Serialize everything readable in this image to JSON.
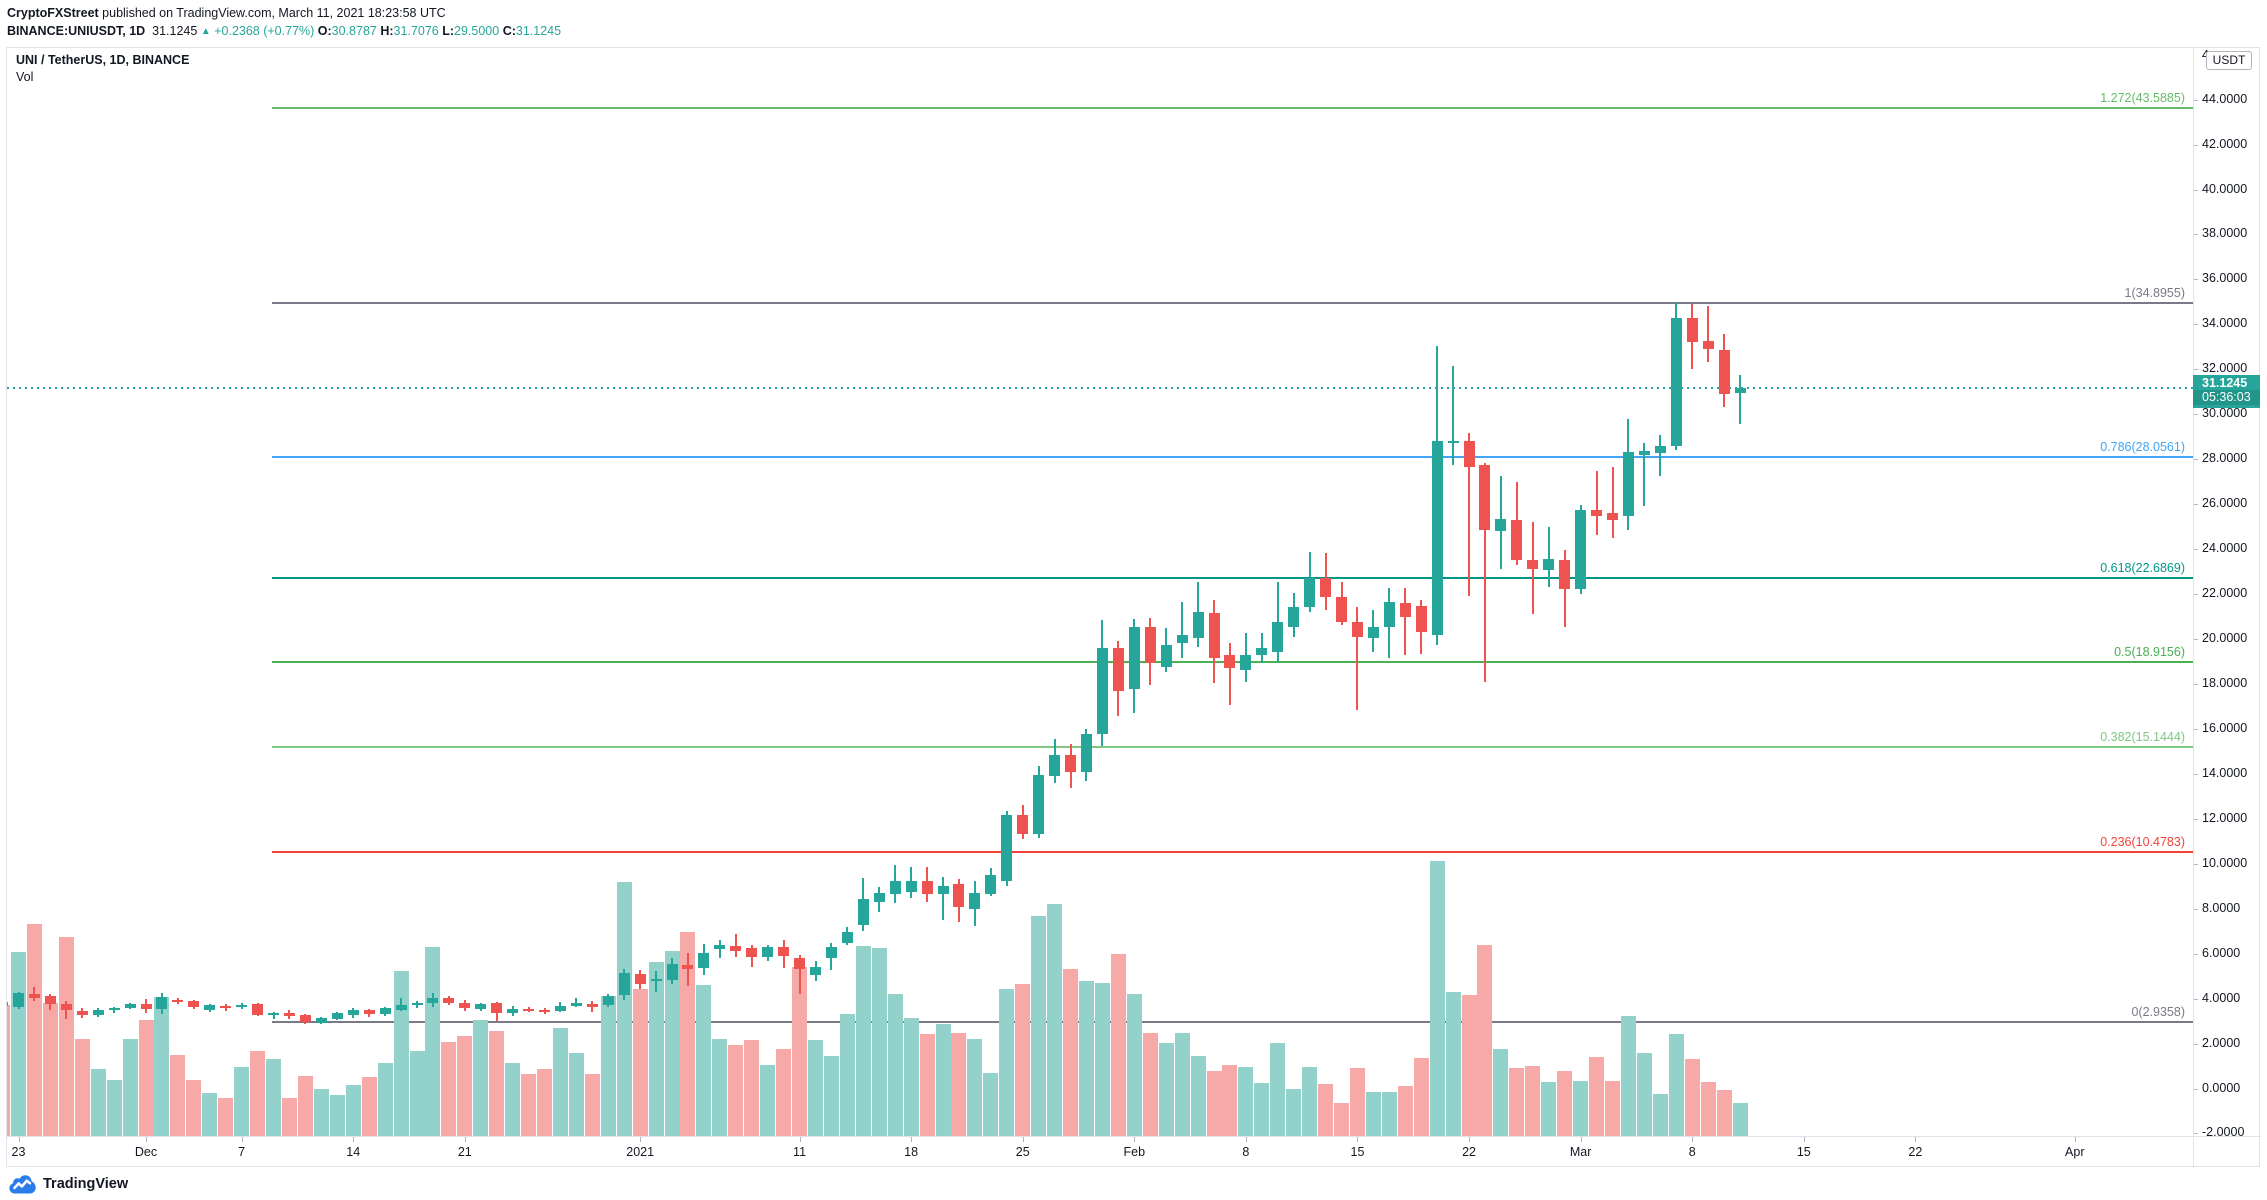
{
  "header": {
    "publisher": "CryptoFXStreet",
    "published_suffix": " published on TradingView.com, March 11, 2021 18:23:58 UTC",
    "symbol_interval": "BINANCE:UNIUSDT, 1D",
    "last_price": "31.1245",
    "up_arrow": "▲",
    "change": "+0.2368 (+0.77%)",
    "ohlc": [
      {
        "k": "O:",
        "v": "30.8787"
      },
      {
        "k": "H:",
        "v": "31.7076"
      },
      {
        "k": "L:",
        "v": "29.5000"
      },
      {
        "k": "C:",
        "v": "31.1245"
      }
    ]
  },
  "legend": {
    "title": "UNI / TetherUS, 1D, BINANCE",
    "indicator": "Vol"
  },
  "footer": {
    "logo_text": "TradingView"
  },
  "price_axis": {
    "unit": "USDT",
    "clipped_top_label": "4",
    "labels": [
      "44.0000",
      "42.0000",
      "40.0000",
      "38.0000",
      "36.0000",
      "34.0000",
      "32.0000",
      "30.0000",
      "28.0000",
      "26.0000",
      "24.0000",
      "22.0000",
      "20.0000",
      "18.0000",
      "16.0000",
      "14.0000",
      "12.0000",
      "10.0000",
      "8.0000",
      "6.0000",
      "4.0000",
      "2.0000",
      "0.0000",
      "-2.0000"
    ],
    "values": [
      44,
      42,
      40,
      38,
      36,
      34,
      32,
      30,
      28,
      26,
      24,
      22,
      20,
      18,
      16,
      14,
      12,
      10,
      8,
      6,
      4,
      2,
      0,
      -2
    ]
  },
  "time_axis": [
    {
      "label": "23",
      "day": 0
    },
    {
      "label": "Dec",
      "day": 8
    },
    {
      "label": "7",
      "day": 14
    },
    {
      "label": "14",
      "day": 21
    },
    {
      "label": "21",
      "day": 28
    },
    {
      "label": "2021",
      "day": 39
    },
    {
      "label": "11",
      "day": 49
    },
    {
      "label": "18",
      "day": 56
    },
    {
      "label": "25",
      "day": 63
    },
    {
      "label": "Feb",
      "day": 70
    },
    {
      "label": "8",
      "day": 77
    },
    {
      "label": "15",
      "day": 84
    },
    {
      "label": "22",
      "day": 91
    },
    {
      "label": "Mar",
      "day": 98
    },
    {
      "label": "8",
      "day": 105
    },
    {
      "label": "15",
      "day": 112
    },
    {
      "label": "22",
      "day": 119
    },
    {
      "label": "Apr",
      "day": 129
    }
  ],
  "colors": {
    "up": "#26a69a",
    "down": "#ef5350",
    "vol_up": "#92d2cb",
    "vol_down": "#f7a9a7",
    "accent_teal": "#26a69a",
    "text_dark": "#131722",
    "border": "#e0e3eb"
  },
  "chart_data": {
    "type": "candlestick+volume",
    "title": "UNI / TetherUS, 1D, BINANCE",
    "symbol": "BINANCE:UNIUSDT",
    "timeframe": "1D",
    "ylim": [
      -2.4,
      46.3
    ],
    "grid": false,
    "last_price": {
      "value": 31.1245,
      "label": "31.1245",
      "countdown": "05:36:03"
    },
    "fib_levels": [
      {
        "label": "1.272(43.5885)",
        "ratio": 1.272,
        "price": 43.5885,
        "color": "#66bb6a"
      },
      {
        "label": "1(34.8955)",
        "ratio": 1.0,
        "price": 34.8955,
        "color": "#787b86"
      },
      {
        "label": "0.786(28.0561)",
        "ratio": 0.786,
        "price": 28.0561,
        "color": "#42a5f5"
      },
      {
        "label": "0.618(22.6869)",
        "ratio": 0.618,
        "price": 22.6869,
        "color": "#009688"
      },
      {
        "label": "0.5(18.9156)",
        "ratio": 0.5,
        "price": 18.9156,
        "color": "#4caf50"
      },
      {
        "label": "0.382(15.1444)",
        "ratio": 0.382,
        "price": 15.1444,
        "color": "#81c784"
      },
      {
        "label": "0.236(10.4783)",
        "ratio": 0.236,
        "price": 10.4783,
        "color": "#f44336"
      },
      {
        "label": "0(2.9358)",
        "ratio": 0.0,
        "price": 2.9358,
        "color": "#787b86"
      }
    ],
    "volume_unit": "relative (1.0 = tallest bar)",
    "candles": [
      {
        "d": "Nov 22",
        "o": 3.8,
        "h": 3.82,
        "l": 3.62,
        "c": 3.63,
        "v": 0.477
      },
      {
        "d": "Nov 23",
        "o": 3.59,
        "h": 4.27,
        "l": 3.49,
        "c": 4.22,
        "v": 0.67
      },
      {
        "d": "Nov 24",
        "o": 4.18,
        "h": 4.47,
        "l": 3.85,
        "c": 3.98,
        "v": 0.772
      },
      {
        "d": "Nov 25",
        "o": 4.05,
        "h": 4.16,
        "l": 3.45,
        "c": 3.7,
        "v": 0.483
      },
      {
        "d": "Nov 26",
        "o": 3.73,
        "h": 3.85,
        "l": 3.05,
        "c": 3.43,
        "v": 0.725
      },
      {
        "d": "Nov 27",
        "o": 3.4,
        "h": 3.53,
        "l": 3.1,
        "c": 3.23,
        "v": 0.355
      },
      {
        "d": "Nov 28",
        "o": 3.24,
        "h": 3.52,
        "l": 3.15,
        "c": 3.45,
        "v": 0.244
      },
      {
        "d": "Nov 29",
        "o": 3.43,
        "h": 3.56,
        "l": 3.33,
        "c": 3.52,
        "v": 0.204
      },
      {
        "d": "Nov 30",
        "o": 3.54,
        "h": 3.78,
        "l": 3.5,
        "c": 3.73,
        "v": 0.352
      },
      {
        "d": "Dec 1",
        "o": 3.73,
        "h": 3.95,
        "l": 3.33,
        "c": 3.51,
        "v": 0.423
      },
      {
        "d": "Dec 2",
        "o": 3.49,
        "h": 4.21,
        "l": 3.26,
        "c": 4.04,
        "v": 0.506
      },
      {
        "d": "Dec 3",
        "o": 3.91,
        "h": 3.98,
        "l": 3.7,
        "c": 3.82,
        "v": 0.295
      },
      {
        "d": "Dec 4",
        "o": 3.86,
        "h": 3.9,
        "l": 3.5,
        "c": 3.57,
        "v": 0.204
      },
      {
        "d": "Dec 5",
        "o": 3.45,
        "h": 3.72,
        "l": 3.35,
        "c": 3.68,
        "v": 0.155
      },
      {
        "d": "Dec 6",
        "o": 3.63,
        "h": 3.72,
        "l": 3.42,
        "c": 3.54,
        "v": 0.14
      },
      {
        "d": "Dec 7",
        "o": 3.57,
        "h": 3.75,
        "l": 3.51,
        "c": 3.69,
        "v": 0.251
      },
      {
        "d": "Dec 8",
        "o": 3.72,
        "h": 3.76,
        "l": 3.2,
        "c": 3.24,
        "v": 0.308
      },
      {
        "d": "Dec 9",
        "o": 3.24,
        "h": 3.36,
        "l": 3.06,
        "c": 3.3,
        "v": 0.28
      },
      {
        "d": "Dec 10",
        "o": 3.3,
        "h": 3.47,
        "l": 3.03,
        "c": 3.17,
        "v": 0.137
      },
      {
        "d": "Dec 11",
        "o": 3.21,
        "h": 3.27,
        "l": 2.83,
        "c": 2.93,
        "v": 0.219
      },
      {
        "d": "Dec 12",
        "o": 2.89,
        "h": 3.13,
        "l": 2.84,
        "c": 3.09,
        "v": 0.171
      },
      {
        "d": "Dec 13",
        "o": 3.04,
        "h": 3.38,
        "l": 2.99,
        "c": 3.33,
        "v": 0.148
      },
      {
        "d": "Dec 14",
        "o": 3.23,
        "h": 3.54,
        "l": 3.09,
        "c": 3.44,
        "v": 0.186
      },
      {
        "d": "Dec 15",
        "o": 3.43,
        "h": 3.51,
        "l": 3.14,
        "c": 3.26,
        "v": 0.215
      },
      {
        "d": "Dec 16",
        "o": 3.28,
        "h": 3.56,
        "l": 3.18,
        "c": 3.53,
        "v": 0.266
      },
      {
        "d": "Dec 17",
        "o": 3.47,
        "h": 3.97,
        "l": 3.42,
        "c": 3.67,
        "v": 0.601
      },
      {
        "d": "Dec 18",
        "o": 3.67,
        "h": 3.84,
        "l": 3.55,
        "c": 3.74,
        "v": 0.31
      },
      {
        "d": "Dec 19",
        "o": 3.77,
        "h": 4.2,
        "l": 3.57,
        "c": 3.97,
        "v": 0.689
      },
      {
        "d": "Dec 20",
        "o": 3.97,
        "h": 4.08,
        "l": 3.66,
        "c": 3.77,
        "v": 0.341
      },
      {
        "d": "Dec 21",
        "o": 3.77,
        "h": 3.9,
        "l": 3.4,
        "c": 3.54,
        "v": 0.364
      },
      {
        "d": "Dec 22",
        "o": 3.5,
        "h": 3.78,
        "l": 3.42,
        "c": 3.7,
        "v": 0.423
      },
      {
        "d": "Dec 23",
        "o": 3.74,
        "h": 3.8,
        "l": 2.97,
        "c": 3.3,
        "v": 0.383
      },
      {
        "d": "Dec 24",
        "o": 3.3,
        "h": 3.63,
        "l": 3.17,
        "c": 3.5,
        "v": 0.266
      },
      {
        "d": "Dec 25",
        "o": 3.5,
        "h": 3.58,
        "l": 3.35,
        "c": 3.43,
        "v": 0.226
      },
      {
        "d": "Dec 26",
        "o": 3.47,
        "h": 3.55,
        "l": 3.28,
        "c": 3.36,
        "v": 0.244
      },
      {
        "d": "Dec 27",
        "o": 3.4,
        "h": 3.8,
        "l": 3.35,
        "c": 3.63,
        "v": 0.393
      },
      {
        "d": "Dec 28",
        "o": 3.63,
        "h": 3.97,
        "l": 3.56,
        "c": 3.74,
        "v": 0.304
      },
      {
        "d": "Dec 29",
        "o": 3.7,
        "h": 3.84,
        "l": 3.37,
        "c": 3.57,
        "v": 0.226
      },
      {
        "d": "Dec 30",
        "o": 3.67,
        "h": 4.17,
        "l": 3.6,
        "c": 4.07,
        "v": 0.51
      },
      {
        "d": "Dec 31",
        "o": 4.1,
        "h": 5.27,
        "l": 3.9,
        "c": 5.1,
        "v": 0.927
      },
      {
        "d": "Jan 1",
        "o": 5.07,
        "h": 5.24,
        "l": 4.37,
        "c": 4.6,
        "v": 0.536
      },
      {
        "d": "Jan 2",
        "o": 4.74,
        "h": 5.17,
        "l": 4.27,
        "c": 4.84,
        "v": 0.634
      },
      {
        "d": "Jan 3",
        "o": 4.79,
        "h": 5.74,
        "l": 4.6,
        "c": 5.5,
        "v": 0.674
      },
      {
        "d": "Jan 4",
        "o": 5.47,
        "h": 5.97,
        "l": 4.5,
        "c": 5.27,
        "v": 0.743
      },
      {
        "d": "Jan 5",
        "o": 5.3,
        "h": 6.37,
        "l": 5.01,
        "c": 5.97,
        "v": 0.55
      },
      {
        "d": "Jan 6",
        "o": 6.14,
        "h": 6.57,
        "l": 5.77,
        "c": 6.34,
        "v": 0.353
      },
      {
        "d": "Jan 7",
        "o": 6.31,
        "h": 6.81,
        "l": 5.81,
        "c": 6.07,
        "v": 0.332
      },
      {
        "d": "Jan 8",
        "o": 6.21,
        "h": 6.35,
        "l": 5.37,
        "c": 5.81,
        "v": 0.35
      },
      {
        "d": "Jan 9",
        "o": 5.81,
        "h": 6.34,
        "l": 5.61,
        "c": 6.24,
        "v": 0.259
      },
      {
        "d": "Jan 10",
        "o": 6.24,
        "h": 6.57,
        "l": 5.3,
        "c": 5.84,
        "v": 0.317
      },
      {
        "d": "Jan 11",
        "o": 5.77,
        "h": 5.9,
        "l": 4.17,
        "c": 5.27,
        "v": 0.616
      },
      {
        "d": "Jan 12",
        "o": 5.01,
        "h": 5.61,
        "l": 4.74,
        "c": 5.37,
        "v": 0.35
      },
      {
        "d": "Jan 13",
        "o": 5.74,
        "h": 6.44,
        "l": 5.21,
        "c": 6.24,
        "v": 0.291
      },
      {
        "d": "Jan 14",
        "o": 6.41,
        "h": 7.14,
        "l": 6.35,
        "c": 6.94,
        "v": 0.444
      },
      {
        "d": "Jan 15",
        "o": 7.24,
        "h": 9.34,
        "l": 6.97,
        "c": 8.37,
        "v": 0.692
      },
      {
        "d": "Jan 16",
        "o": 8.27,
        "h": 8.94,
        "l": 7.81,
        "c": 8.64,
        "v": 0.685
      },
      {
        "d": "Jan 17",
        "o": 8.61,
        "h": 9.88,
        "l": 8.21,
        "c": 9.17,
        "v": 0.517
      },
      {
        "d": "Jan 18",
        "o": 8.71,
        "h": 9.79,
        "l": 8.45,
        "c": 9.21,
        "v": 0.429
      },
      {
        "d": "Jan 19",
        "o": 9.21,
        "h": 9.82,
        "l": 8.25,
        "c": 8.62,
        "v": 0.372
      },
      {
        "d": "Jan 20",
        "o": 8.62,
        "h": 9.37,
        "l": 7.45,
        "c": 8.95,
        "v": 0.409
      },
      {
        "d": "Jan 21",
        "o": 9.04,
        "h": 9.29,
        "l": 7.37,
        "c": 8.03,
        "v": 0.374
      },
      {
        "d": "Jan 22",
        "o": 7.92,
        "h": 9.21,
        "l": 7.2,
        "c": 8.67,
        "v": 0.354
      },
      {
        "d": "Jan 23",
        "o": 8.62,
        "h": 9.75,
        "l": 8.54,
        "c": 9.45,
        "v": 0.23
      },
      {
        "d": "Jan 24",
        "o": 9.21,
        "h": 12.32,
        "l": 8.95,
        "c": 12.13,
        "v": 0.537
      },
      {
        "d": "Jan 25",
        "o": 12.13,
        "h": 12.57,
        "l": 11.04,
        "c": 11.29,
        "v": 0.555
      },
      {
        "d": "Jan 26",
        "o": 11.29,
        "h": 14.29,
        "l": 11.12,
        "c": 13.91,
        "v": 0.803
      },
      {
        "d": "Jan 27",
        "o": 13.88,
        "h": 15.49,
        "l": 13.54,
        "c": 14.79,
        "v": 0.846
      },
      {
        "d": "Jan 28",
        "o": 14.79,
        "h": 15.29,
        "l": 13.33,
        "c": 14.04,
        "v": 0.607
      },
      {
        "d": "Jan 29",
        "o": 14.04,
        "h": 15.96,
        "l": 13.63,
        "c": 15.71,
        "v": 0.563
      },
      {
        "d": "Jan 30",
        "o": 15.71,
        "h": 20.8,
        "l": 15.21,
        "c": 19.55,
        "v": 0.559
      },
      {
        "d": "Jan 31",
        "o": 19.55,
        "h": 19.88,
        "l": 16.55,
        "c": 17.63,
        "v": 0.662
      },
      {
        "d": "Feb 1",
        "o": 17.71,
        "h": 20.83,
        "l": 16.66,
        "c": 20.47,
        "v": 0.517
      },
      {
        "d": "Feb 2",
        "o": 20.5,
        "h": 20.88,
        "l": 17.91,
        "c": 18.87,
        "v": 0.376
      },
      {
        "d": "Feb 3",
        "o": 18.72,
        "h": 20.43,
        "l": 18.5,
        "c": 19.69,
        "v": 0.337
      },
      {
        "d": "Feb 4",
        "o": 19.76,
        "h": 21.61,
        "l": 19.09,
        "c": 20.13,
        "v": 0.377
      },
      {
        "d": "Feb 5",
        "o": 19.98,
        "h": 22.5,
        "l": 19.61,
        "c": 21.17,
        "v": 0.291
      },
      {
        "d": "Feb 6",
        "o": 21.13,
        "h": 21.69,
        "l": 17.98,
        "c": 19.09,
        "v": 0.235
      },
      {
        "d": "Feb 7",
        "o": 19.24,
        "h": 19.76,
        "l": 17.02,
        "c": 18.65,
        "v": 0.26
      },
      {
        "d": "Feb 8",
        "o": 18.58,
        "h": 20.21,
        "l": 18.06,
        "c": 19.24,
        "v": 0.252
      },
      {
        "d": "Feb 9",
        "o": 19.24,
        "h": 20.21,
        "l": 18.87,
        "c": 19.54,
        "v": 0.192
      },
      {
        "d": "Feb 10",
        "o": 19.39,
        "h": 22.5,
        "l": 18.94,
        "c": 20.72,
        "v": 0.34
      },
      {
        "d": "Feb 11",
        "o": 20.5,
        "h": 21.99,
        "l": 20.06,
        "c": 21.39,
        "v": 0.172
      },
      {
        "d": "Feb 12",
        "o": 21.39,
        "h": 23.84,
        "l": 21.17,
        "c": 22.65,
        "v": 0.25
      },
      {
        "d": "Feb 13",
        "o": 22.65,
        "h": 23.77,
        "l": 21.25,
        "c": 21.84,
        "v": 0.191
      },
      {
        "d": "Feb 14",
        "o": 21.84,
        "h": 22.5,
        "l": 20.58,
        "c": 20.72,
        "v": 0.122
      },
      {
        "d": "Feb 15",
        "o": 20.72,
        "h": 21.39,
        "l": 16.8,
        "c": 20.06,
        "v": 0.247
      },
      {
        "d": "Feb 16",
        "o": 19.98,
        "h": 21.25,
        "l": 19.39,
        "c": 20.5,
        "v": 0.162
      },
      {
        "d": "Feb 17",
        "o": 20.5,
        "h": 22.21,
        "l": 19.09,
        "c": 21.61,
        "v": 0.162
      },
      {
        "d": "Feb 18",
        "o": 21.54,
        "h": 22.21,
        "l": 19.24,
        "c": 20.94,
        "v": 0.181
      },
      {
        "d": "Feb 19",
        "o": 21.42,
        "h": 21.69,
        "l": 19.29,
        "c": 20.27,
        "v": 0.283
      },
      {
        "d": "Feb 20",
        "o": 20.13,
        "h": 33.0,
        "l": 19.7,
        "c": 28.76,
        "v": 1.0
      },
      {
        "d": "Feb 21",
        "o": 28.66,
        "h": 32.1,
        "l": 27.68,
        "c": 28.77,
        "v": 0.526
      },
      {
        "d": "Feb 22",
        "o": 28.76,
        "h": 29.14,
        "l": 21.87,
        "c": 27.62,
        "v": 0.515
      },
      {
        "d": "Feb 23",
        "o": 27.68,
        "h": 27.8,
        "l": 18.04,
        "c": 24.81,
        "v": 0.695
      },
      {
        "d": "Feb 24",
        "o": 24.75,
        "h": 27.21,
        "l": 23.08,
        "c": 25.29,
        "v": 0.318
      },
      {
        "d": "Feb 25",
        "o": 25.25,
        "h": 26.94,
        "l": 23.26,
        "c": 23.47,
        "v": 0.249
      },
      {
        "d": "Feb 26",
        "o": 23.47,
        "h": 25.16,
        "l": 21.07,
        "c": 23.08,
        "v": 0.254
      },
      {
        "d": "Feb 27",
        "o": 23.03,
        "h": 24.93,
        "l": 22.26,
        "c": 23.51,
        "v": 0.196
      },
      {
        "d": "Feb 28",
        "o": 23.47,
        "h": 23.9,
        "l": 20.48,
        "c": 22.19,
        "v": 0.236
      },
      {
        "d": "Mar 1",
        "o": 22.19,
        "h": 25.93,
        "l": 21.95,
        "c": 25.7,
        "v": 0.2
      },
      {
        "d": "Mar 2",
        "o": 25.7,
        "h": 27.42,
        "l": 24.57,
        "c": 25.43,
        "v": 0.286
      },
      {
        "d": "Mar 3",
        "o": 25.55,
        "h": 27.6,
        "l": 24.45,
        "c": 25.25,
        "v": 0.199
      },
      {
        "d": "Mar 4",
        "o": 25.43,
        "h": 29.73,
        "l": 24.81,
        "c": 28.27,
        "v": 0.436
      },
      {
        "d": "Mar 5",
        "o": 28.13,
        "h": 28.67,
        "l": 25.87,
        "c": 28.31,
        "v": 0.302
      },
      {
        "d": "Mar 6",
        "o": 28.24,
        "h": 29.02,
        "l": 27.21,
        "c": 28.54,
        "v": 0.154
      },
      {
        "d": "Mar 7",
        "o": 28.54,
        "h": 34.91,
        "l": 28.36,
        "c": 34.24,
        "v": 0.37
      },
      {
        "d": "Mar 8",
        "o": 34.23,
        "h": 34.88,
        "l": 31.98,
        "c": 33.18,
        "v": 0.282
      },
      {
        "d": "Mar 9",
        "o": 33.2,
        "h": 34.76,
        "l": 32.3,
        "c": 32.86,
        "v": 0.197
      },
      {
        "d": "Mar 10",
        "o": 32.83,
        "h": 33.53,
        "l": 30.29,
        "c": 30.87,
        "v": 0.168
      },
      {
        "d": "Mar 11",
        "o": 30.88,
        "h": 31.71,
        "l": 29.5,
        "c": 31.12,
        "v": 0.122
      }
    ]
  }
}
